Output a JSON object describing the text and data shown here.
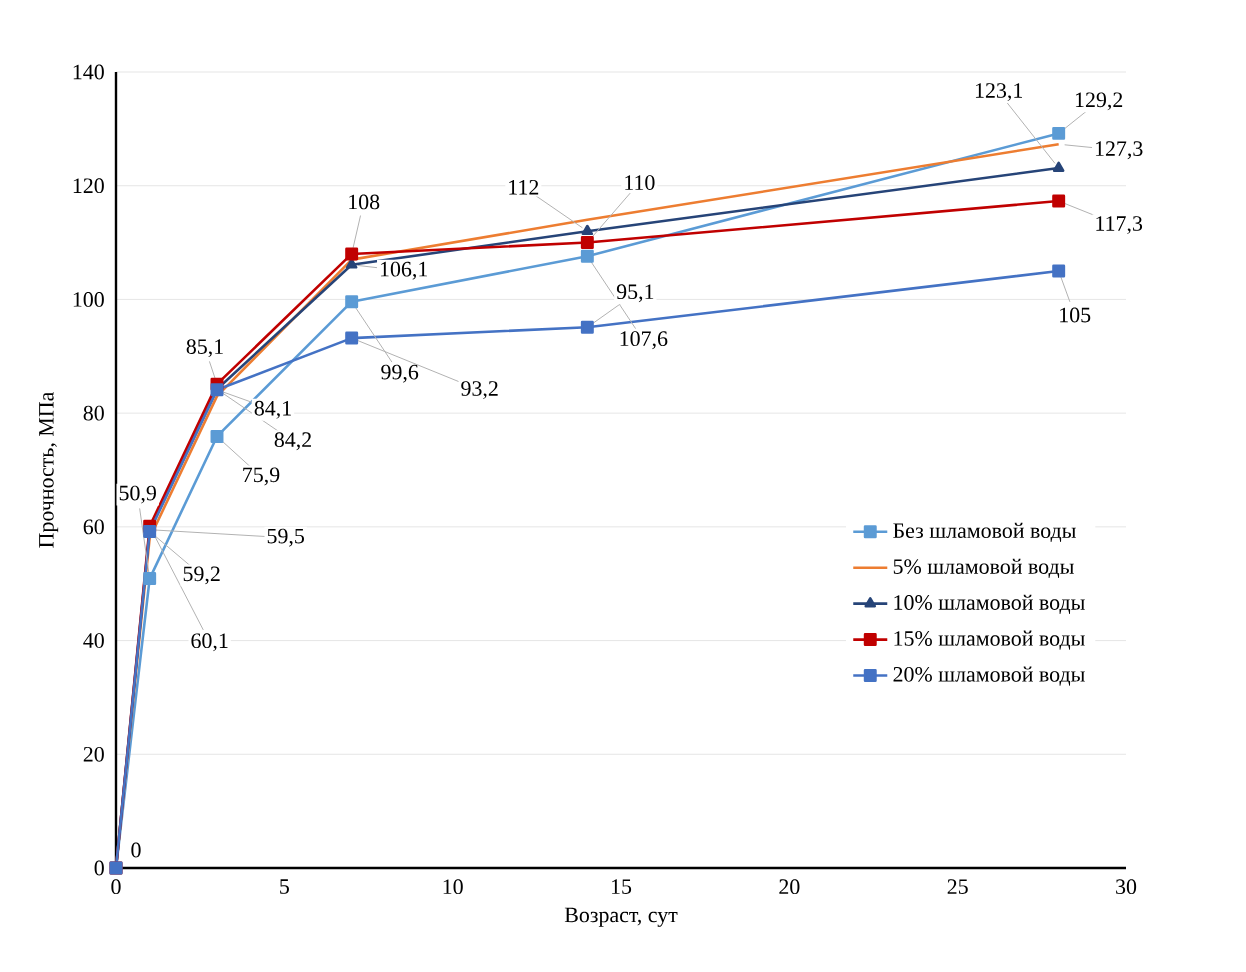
{
  "chart_data": {
    "type": "line",
    "xlabel": "Возраст, сут",
    "ylabel": "Прочность, МПа",
    "x": [
      0,
      1,
      3,
      7,
      14,
      28
    ],
    "xlim": [
      0,
      30
    ],
    "xticks": [
      0,
      5,
      10,
      15,
      20,
      25,
      30
    ],
    "ylim": [
      0,
      140
    ],
    "yticks": [
      0,
      20,
      40,
      60,
      80,
      100,
      120,
      140
    ],
    "grid": "y",
    "legend": "right",
    "series": [
      {
        "name": "Без шламовой воды",
        "color": "#5b9bd5",
        "marker": "square",
        "values": [
          0,
          50.9,
          75.9,
          99.6,
          107.6,
          129.2
        ],
        "value_labels": [
          "0",
          "50,9",
          "75,9",
          "99,6",
          "107,6",
          "129,2"
        ]
      },
      {
        "name": "5% шламовой воды",
        "color": "#ed7d31",
        "marker": "none",
        "values": [
          0,
          58,
          83,
          107,
          114,
          127.3
        ],
        "value_labels": [
          null,
          null,
          null,
          null,
          null,
          "127,3"
        ]
      },
      {
        "name": "10% шламовой воды",
        "color": "#264478",
        "marker": "triangle",
        "values": [
          0,
          59.5,
          84.2,
          106.1,
          112,
          123.1
        ],
        "value_labels": [
          null,
          "59,5",
          "84,2",
          "106,1",
          "112",
          "123,1"
        ]
      },
      {
        "name": "15% шламовой воды",
        "color": "#c00000",
        "marker": "square",
        "values": [
          0,
          60.1,
          85.1,
          108,
          110,
          117.3
        ],
        "value_labels": [
          null,
          "60,1",
          "85,1",
          "108",
          "110",
          "117,3"
        ]
      },
      {
        "name": "20% шламовой воды",
        "color": "#4472c4",
        "marker": "square",
        "values": [
          0,
          59.2,
          84.1,
          93.2,
          95.1,
          105
        ],
        "value_labels": [
          null,
          "59,2",
          "84,1",
          "93,2",
          "95,1",
          "105"
        ]
      }
    ]
  }
}
